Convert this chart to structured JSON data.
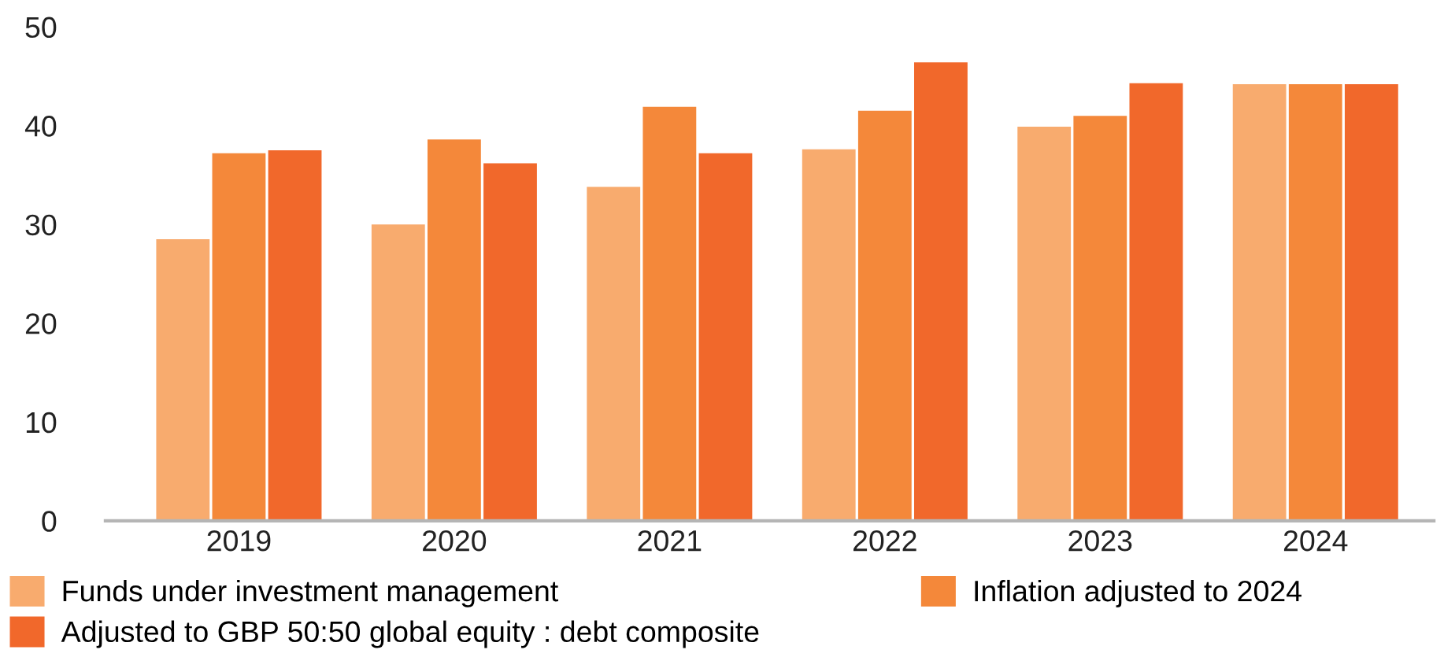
{
  "chart_data": {
    "type": "bar",
    "categories": [
      "2019",
      "2020",
      "2021",
      "2022",
      "2023",
      "2024"
    ],
    "series": [
      {
        "name": "Funds under investment management",
        "color": "#f8ab6e",
        "values": [
          28.5,
          30.0,
          33.8,
          37.6,
          39.9,
          44.2
        ]
      },
      {
        "name": "Inflation adjusted to 2024",
        "color": "#f4883a",
        "values": [
          37.2,
          38.6,
          41.9,
          41.5,
          41.0,
          44.2
        ]
      },
      {
        "name": "Adjusted to GBP 50:50 global equity : debt composite",
        "color": "#f1682b",
        "values": [
          37.5,
          36.2,
          37.2,
          46.4,
          44.3,
          44.2
        ]
      }
    ],
    "ylim": [
      0,
      50
    ],
    "yticks": [
      0,
      10,
      20,
      30,
      40,
      50
    ],
    "grid": false,
    "legend": "bottom"
  }
}
